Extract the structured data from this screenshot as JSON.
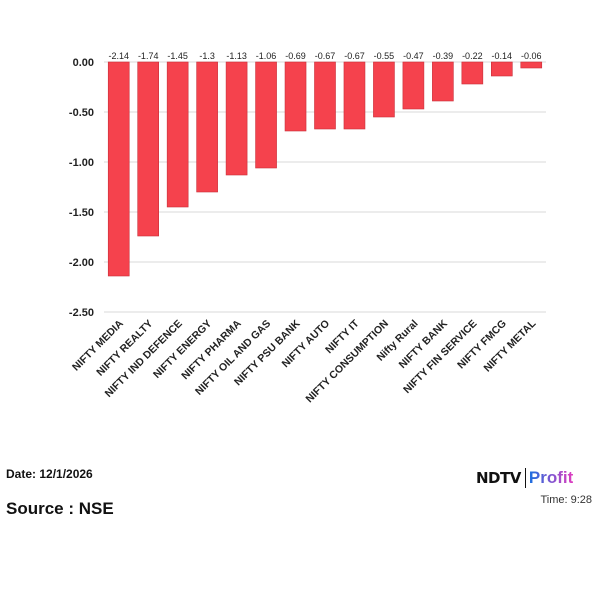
{
  "chart_data": {
    "type": "bar",
    "title": "",
    "xlabel": "",
    "ylabel": "",
    "categories": [
      "NIFTY MEDIA",
      "NIFTY REALTY",
      "NIFTY IND DEFENCE",
      "NIFTY ENERGY",
      "NIFTY PHARMA",
      "NIFTY OIL AND GAS",
      "NIFTY PSU BANK",
      "NIFTY AUTO",
      "NIFTY IT",
      "NIFTY CONSUMPTION",
      "Nifty Rural",
      "NIFTY BANK",
      "NIFTY FIN SERVICE",
      "NIFTY FMCG",
      "NIFTY METAL"
    ],
    "values": [
      -2.14,
      -1.74,
      -1.45,
      -1.3,
      -1.13,
      -1.06,
      -0.69,
      -0.67,
      -0.67,
      -0.55,
      -0.47,
      -0.39,
      -0.22,
      -0.14,
      -0.06
    ],
    "data_labels": [
      "-2.14",
      "-1.74",
      "-1.45",
      "-1.3",
      "-1.13",
      "-1.06",
      "-0.69",
      "-0.67",
      "-0.67",
      "-0.55",
      "-0.47",
      "-0.39",
      "-0.22",
      "-0.14",
      "-0.06"
    ],
    "yticks": [
      "0.00",
      "-0.50",
      "-1.00",
      "-1.50",
      "-2.00",
      "-2.50"
    ],
    "ylim": [
      -2.5,
      0
    ],
    "grid": true,
    "bar_color": "#f5424d"
  },
  "footer": {
    "date": "Date: 12/1/2026",
    "source": "Source : NSE",
    "time": "Time: 9:28",
    "logo_ndtv": "NDTV",
    "logo_profit": "Profit"
  }
}
